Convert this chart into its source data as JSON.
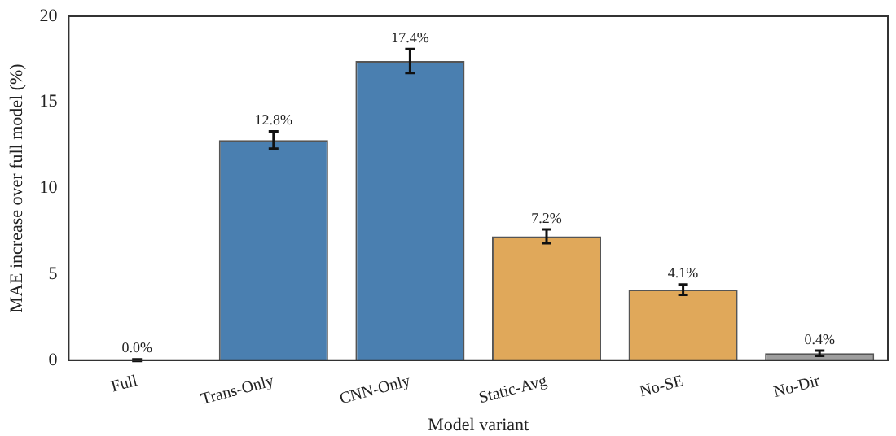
{
  "chart_data": {
    "type": "bar",
    "xlabel": "Model variant",
    "ylabel": "MAE increase over full model (%)",
    "categories": [
      "Full",
      "Trans-Only",
      "CNN-Only",
      "Static-Avg",
      "No-SE",
      "No-Dir"
    ],
    "values": [
      0.0,
      12.8,
      17.4,
      7.2,
      4.1,
      0.4
    ],
    "errors": [
      0.05,
      0.5,
      0.7,
      0.4,
      0.3,
      0.15
    ],
    "value_labels": [
      "0.0%",
      "12.8%",
      "17.4%",
      "7.2%",
      "4.1%",
      "0.4%"
    ],
    "colors": [
      "#4a7fb0",
      "#4a7fb0",
      "#4a7fb0",
      "#e0a85a",
      "#e0a85a",
      "#9e9e9e"
    ],
    "ylim": [
      0,
      20
    ],
    "yticks": [
      0,
      5,
      10,
      15,
      20
    ],
    "grid": false,
    "legend": false
  }
}
